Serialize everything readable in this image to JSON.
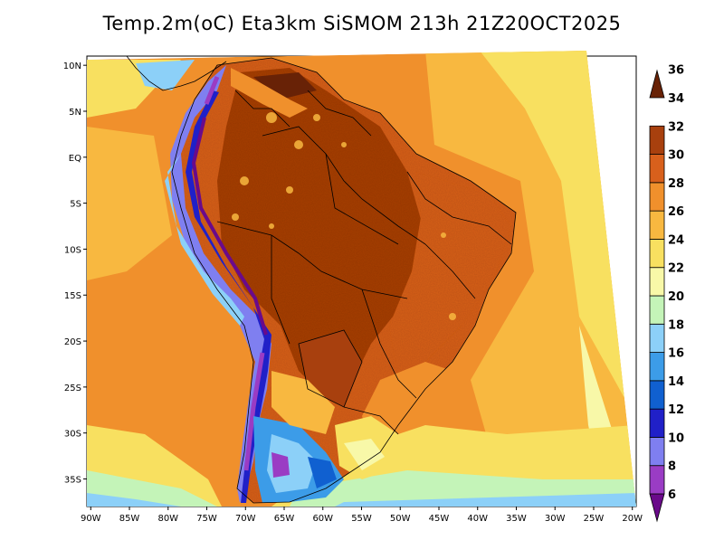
{
  "title": "Temp.2m(oC) Eta3km SiSMOM 213h 21Z20OCT2025",
  "map": {
    "lon_labels": [
      "90W",
      "85W",
      "80W",
      "75W",
      "70W",
      "65W",
      "60W",
      "55W",
      "50W",
      "45W",
      "40W",
      "35W",
      "30W",
      "25W",
      "20W"
    ],
    "lon_values": [
      -90,
      -85,
      -80,
      -75,
      -70,
      -65,
      -60,
      -55,
      -50,
      -45,
      -40,
      -35,
      -30,
      -25,
      -20
    ],
    "lat_labels": [
      "10N",
      "5N",
      "EQ",
      "5S",
      "10S",
      "15S",
      "20S",
      "25S",
      "30S",
      "35S"
    ],
    "lat_values": [
      10,
      5,
      0,
      -5,
      -10,
      -15,
      -20,
      -25,
      -30,
      -35
    ],
    "lon_range": [
      -90.5,
      -19.5
    ],
    "lat_range": [
      -38,
      11
    ]
  },
  "colorbar": {
    "levels": [
      6,
      8,
      10,
      12,
      14,
      16,
      18,
      20,
      22,
      24,
      26,
      28,
      30,
      32,
      34,
      36
    ],
    "labels": [
      "6",
      "8",
      "10",
      "12",
      "14",
      "16",
      "18",
      "20",
      "22",
      "24",
      "26",
      "28",
      "30",
      "32",
      "34",
      "36"
    ],
    "colors": [
      "#6a0a8a",
      "#9a3cc4",
      "#7f7ff0",
      "#2020c8",
      "#1060d0",
      "#3c9ce8",
      "#8cd0f8",
      "#c4f4b8",
      "#f8f8a8",
      "#f8e060",
      "#f8b840",
      "#f0902c",
      "#d8601c",
      "#a8400e",
      "#682206"
    ]
  }
}
